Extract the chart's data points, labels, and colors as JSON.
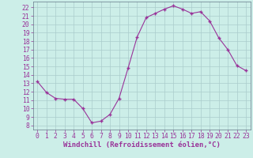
{
  "hours": [
    0,
    1,
    2,
    3,
    4,
    5,
    6,
    7,
    8,
    9,
    10,
    11,
    12,
    13,
    14,
    15,
    16,
    17,
    18,
    19,
    20,
    21,
    22,
    23
  ],
  "values": [
    13.2,
    11.9,
    11.2,
    11.1,
    11.1,
    10.0,
    8.3,
    8.5,
    9.3,
    11.2,
    14.8,
    18.5,
    20.8,
    21.3,
    21.8,
    22.2,
    21.8,
    21.3,
    21.5,
    20.4,
    18.4,
    17.0,
    15.1,
    14.5
  ],
  "line_color": "#993399",
  "marker": "+",
  "marker_size": 3,
  "bg_color": "#cceee8",
  "grid_color": "#aacccc",
  "ylabel_ticks": [
    8,
    9,
    10,
    11,
    12,
    13,
    14,
    15,
    16,
    17,
    18,
    19,
    20,
    21,
    22
  ],
  "ylim": [
    7.5,
    22.7
  ],
  "xlim": [
    -0.5,
    23.5
  ],
  "xlabel": "Windchill (Refroidissement éolien,°C)",
  "xlabel_fontsize": 6.5,
  "tick_fontsize": 5.8
}
